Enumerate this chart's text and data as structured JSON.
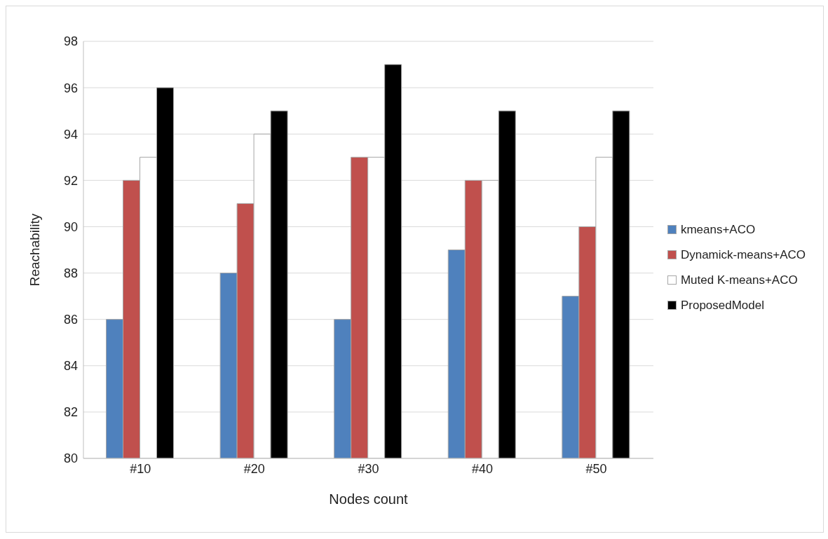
{
  "chart_data": {
    "type": "bar",
    "xlabel": "Nodes count",
    "ylabel": "Reachability",
    "categories": [
      "#10",
      "#20",
      "#30",
      "#40",
      "#50"
    ],
    "series": [
      {
        "name": "kmeans+ACO",
        "color": "#4f81bd",
        "values": [
          86,
          88,
          86,
          89,
          87
        ]
      },
      {
        "name": "Dynamick-means+ACO",
        "color": "#c0504d",
        "values": [
          92,
          91,
          93,
          92,
          90
        ]
      },
      {
        "name": "Muted K-means+ACO",
        "color": "#ffffff",
        "values": [
          93,
          94,
          93,
          92,
          93
        ]
      },
      {
        "name": "ProposedModel",
        "color": "#000000",
        "values": [
          96,
          95,
          97,
          95,
          95
        ]
      }
    ],
    "ylim": [
      80,
      98
    ],
    "yticks": [
      80,
      82,
      84,
      86,
      88,
      90,
      92,
      94,
      96,
      98
    ],
    "grid": "y",
    "legend": "right"
  }
}
